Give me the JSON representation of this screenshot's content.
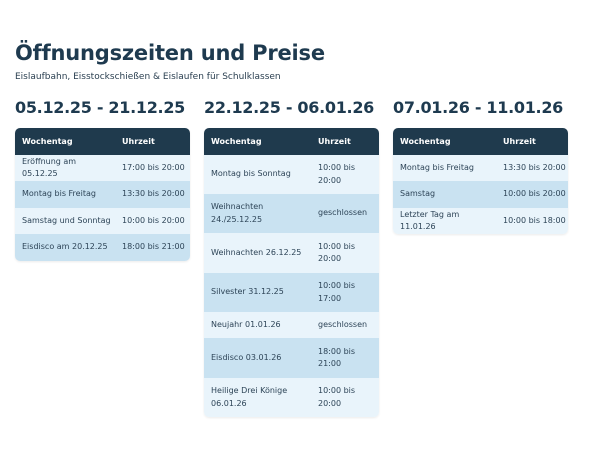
{
  "title": "Öffnungszeiten und Preise",
  "subtitle": "Eislaufbahn, Eisstockschießen & Eislaufen für Schulklassen",
  "columns": [
    {
      "period": "05.12.25 - 21.12.25",
      "headers": [
        "Wochentag",
        "Uhrzeit"
      ],
      "rows": [
        {
          "day": "Eröffnung am 05.12.25",
          "time": "17:00 bis 20:00"
        },
        {
          "day": "Montag bis Freitag",
          "time": "13:30 bis 20:00"
        },
        {
          "day": "Samstag und Sonntag",
          "time": "10:00 bis 20:00"
        },
        {
          "day": "Eisdisco am 20.12.25",
          "time": "18:00 bis 21:00"
        }
      ]
    },
    {
      "period": "22.12.25 - 06.01.26",
      "headers": [
        "Wochentag",
        "Uhrzeit"
      ],
      "rows": [
        {
          "day": "Montag bis Sonntag",
          "time": "10:00 bis 20:00"
        },
        {
          "day": "Weihnachten 24./25.12.25",
          "time": "geschlossen"
        },
        {
          "day": "Weihnachten 26.12.25",
          "time": "10:00 bis 20:00"
        },
        {
          "day": "Silvester 31.12.25",
          "time": "10:00 bis 17:00"
        },
        {
          "day": "Neujahr 01.01.26",
          "time": "geschlossen"
        },
        {
          "day": "Eisdisco 03.01.26",
          "time": "18:00 bis 21:00"
        },
        {
          "day": "Heilige Drei Könige 06.01.26",
          "time": "10:00 bis 20:00"
        }
      ]
    },
    {
      "period": "07.01.26 - 11.01.26",
      "headers": [
        "Wochentag",
        "Uhrzeit"
      ],
      "rows": [
        {
          "day": "Montag bis Freitag",
          "time": "13:30 bis 20:00"
        },
        {
          "day": "Samstag",
          "time": "10:00 bis 20:00"
        },
        {
          "day": "Letzter Tag am 11.01.26",
          "time": "10:00 bis 18:00"
        }
      ]
    }
  ],
  "colors": {
    "header_bg": "#1f3a4d",
    "row_light": "#e9f4fb",
    "row_dark": "#c9e2f1",
    "title": "#1e3a4f"
  }
}
